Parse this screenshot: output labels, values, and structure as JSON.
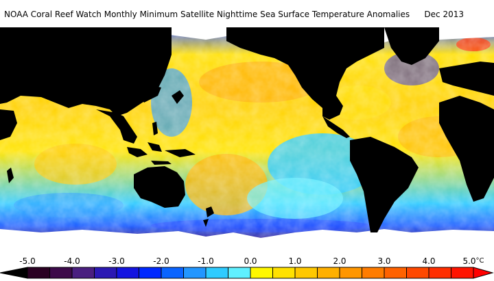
{
  "title": "NOAA Coral Reef Watch Monthly Minimum Satellite Nighttime Sea Surface Temperature Anomalies",
  "date": "Dec 2013",
  "colorbar": {
    "ticks": [
      "-5.0",
      "-4.0",
      "-3.0",
      "-2.0",
      "-1.0",
      "0.0",
      "1.0",
      "2.0",
      "3.0",
      "4.0",
      "5.0"
    ],
    "unit": "°C",
    "colors": [
      "#2a0022",
      "#3d0a4a",
      "#4a1f80",
      "#2b18b3",
      "#1414e0",
      "#0028ff",
      "#0a64ff",
      "#2296ff",
      "#2ecbff",
      "#5ff0ff",
      "#fff700",
      "#ffe100",
      "#ffc800",
      "#ffb000",
      "#ff9600",
      "#ff7c00",
      "#ff6200",
      "#ff4800",
      "#ff2e00",
      "#ff1400"
    ],
    "low_color": "#000000",
    "high_color": "#ff0000"
  },
  "colors": {
    "land": "#000000",
    "ice": "#ffffff"
  }
}
